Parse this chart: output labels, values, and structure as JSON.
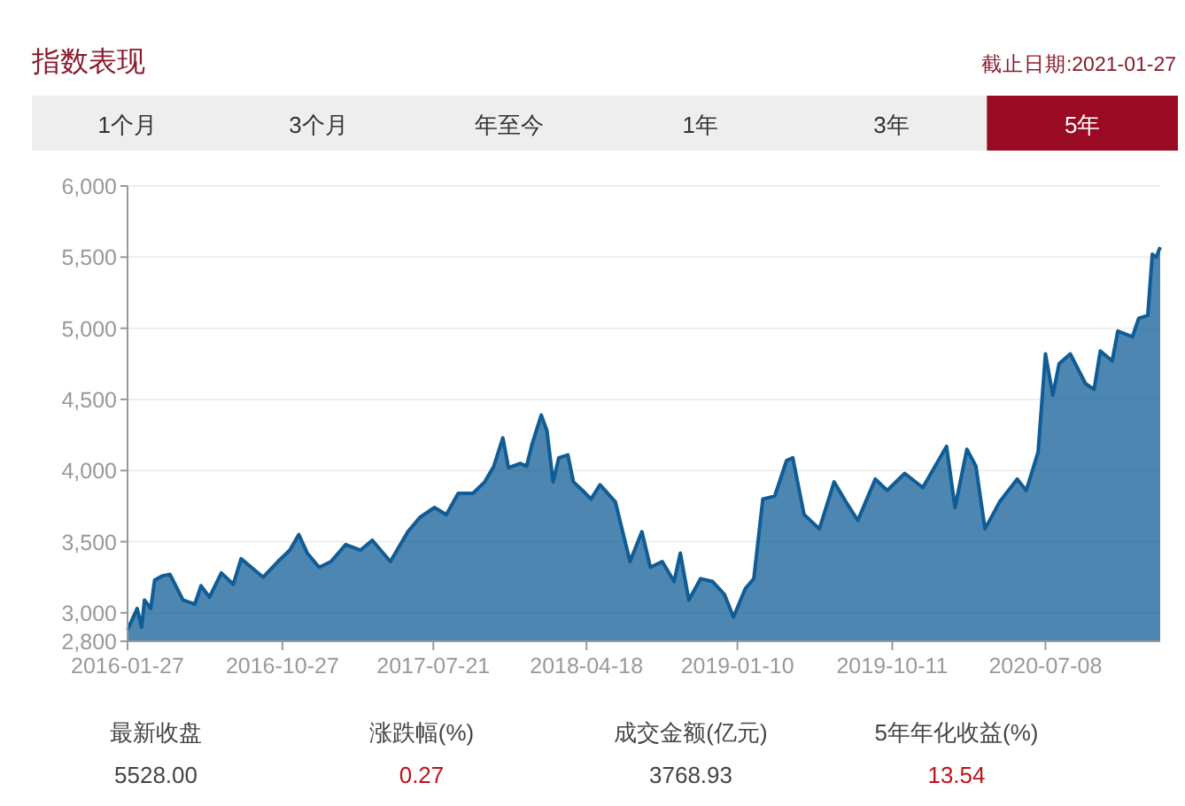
{
  "chart_data": [
    {
      "type": "area",
      "title": "指数表现",
      "subtitle": "截止日期:2021-01-27",
      "annotations": [
        "1个月",
        "3个月",
        "年至今",
        "1年",
        "3年",
        "5年"
      ],
      "x": [
        "2016-01-27",
        "2016-02-13",
        "2016-02-21",
        "2016-02-26",
        "2016-03-08",
        "2016-03-15",
        "2016-03-29",
        "2016-04-11",
        "2016-04-24",
        "2016-05-04",
        "2016-05-25",
        "2016-06-05",
        "2016-06-20",
        "2016-07-11",
        "2016-08-01",
        "2016-08-15",
        "2016-09-02",
        "2016-09-23",
        "2016-10-19",
        "2016-11-09",
        "2016-11-25",
        "2016-12-10",
        "2016-12-31",
        "2017-01-21",
        "2017-02-16",
        "2017-03-14",
        "2017-04-04",
        "2017-05-06",
        "2017-06-06",
        "2017-06-27",
        "2017-07-23",
        "2017-08-13",
        "2017-09-03",
        "2017-09-29",
        "2017-10-20",
        "2017-11-05",
        "2017-11-21",
        "2017-12-01",
        "2017-12-22",
        "2018-01-02",
        "2018-01-12",
        "2018-01-28",
        "2018-02-07",
        "2018-02-18",
        "2018-02-28",
        "2018-03-16",
        "2018-03-26",
        "2018-04-11",
        "2018-04-26",
        "2018-05-12",
        "2018-06-08",
        "2018-07-04",
        "2018-07-25",
        "2018-08-09",
        "2018-08-30",
        "2018-09-20",
        "2018-10-01",
        "2018-10-16",
        "2018-11-06",
        "2018-11-27",
        "2018-12-18",
        "2019-01-03",
        "2019-01-24",
        "2019-02-08",
        "2019-02-24",
        "2019-03-17",
        "2019-04-07",
        "2019-04-18",
        "2019-05-08",
        "2019-06-04",
        "2019-06-30",
        "2019-07-21",
        "2019-08-11",
        "2019-09-11",
        "2019-10-02",
        "2019-11-02",
        "2019-12-04",
        "2020-01-15",
        "2020-01-30",
        "2020-02-20",
        "2020-03-07",
        "2020-03-23",
        "2020-04-18",
        "2020-05-19",
        "2020-06-04",
        "2020-06-25",
        "2020-07-08",
        "2020-07-21",
        "2020-08-01",
        "2020-08-21",
        "2020-09-17",
        "2020-10-02",
        "2020-10-13",
        "2020-11-03",
        "2020-11-13",
        "2020-12-09",
        "2020-12-20",
        "2021-01-05",
        "2021-01-13",
        "2021-01-20",
        "2021-01-27"
      ],
      "series": [
        {
          "color": "#0f5c96",
          "values": [
            2880,
            3030,
            2900,
            3090,
            3030,
            3230,
            3260,
            3270,
            3170,
            3090,
            3060,
            3190,
            3110,
            3280,
            3200,
            3380,
            3320,
            3250,
            3360,
            3440,
            3550,
            3420,
            3320,
            3360,
            3480,
            3440,
            3510,
            3360,
            3570,
            3670,
            3740,
            3690,
            3840,
            3840,
            3920,
            4030,
            4230,
            4020,
            4050,
            4030,
            4190,
            4390,
            4280,
            3920,
            4090,
            4110,
            3920,
            3860,
            3800,
            3900,
            3780,
            3360,
            3570,
            3320,
            3360,
            3220,
            3420,
            3090,
            3240,
            3220,
            3130,
            2970,
            3170,
            3240,
            3800,
            3820,
            4070,
            4090,
            3690,
            3590,
            3920,
            3780,
            3650,
            3940,
            3860,
            3980,
            3880,
            4170,
            3740,
            4150,
            4030,
            3590,
            3780,
            3940,
            3860,
            4130,
            4820,
            4530,
            4750,
            4820,
            4610,
            4570,
            4840,
            4770,
            4980,
            4940,
            5070,
            5090,
            5520,
            5500,
            5570
          ]
        }
      ],
      "xlim": [
        "2016-01-27",
        "2021-01-27"
      ],
      "xticks": [
        "2016-01-27",
        "2016-10-27",
        "2017-07-21",
        "2018-04-18",
        "2019-01-10",
        "2019-10-11",
        "2020-07-08"
      ],
      "ylim": [
        2800,
        6000
      ],
      "yticks": [
        {
          "value": 2800,
          "label": "2,800"
        },
        {
          "value": 3000,
          "label": "3,000"
        },
        {
          "value": 3500,
          "label": "3,500"
        },
        {
          "value": 4000,
          "label": "4,000"
        },
        {
          "value": 4500,
          "label": "4,500"
        },
        {
          "value": 5000,
          "label": "5,000"
        },
        {
          "value": 5500,
          "label": "5,500"
        },
        {
          "value": 6000,
          "label": "6,000"
        }
      ],
      "grid": "y"
    },
    {
      "type": "other",
      "categories": [
        "最新收盘",
        "涨跌幅(%)",
        "成交金额(亿元)",
        "5年年化收益(%)"
      ],
      "value_labels": [
        "5528.00",
        "0.27",
        "3768.93",
        "13.54"
      ],
      "colors": [
        "#444444",
        "#c0121e",
        "#444444",
        "#c0121e"
      ]
    }
  ]
}
